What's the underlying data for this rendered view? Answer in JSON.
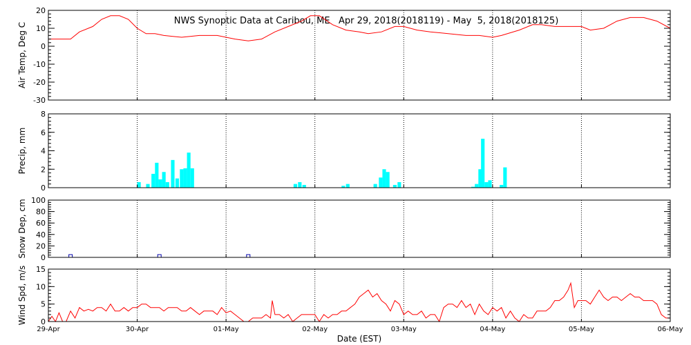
{
  "title": "NWS Synoptic Data at Caribou, ME   Apr 29, 2018(2018119) - May  5, 2018(2018125)",
  "x_axis": {
    "label": "Date (EST)",
    "ticks": [
      "29-Apr",
      "30-Apr",
      "01-May",
      "02-May",
      "03-May",
      "04-May",
      "05-May",
      "06-May"
    ]
  },
  "colors": {
    "air_temp": "#ff0000",
    "precip": "#00ffff",
    "snow_depth": "#0000aa",
    "wind_speed": "#ff0000"
  },
  "chart_data": [
    {
      "type": "line",
      "ylabel": "Air Temp, Deg C",
      "ylim": [
        -30,
        20
      ],
      "yticks": [
        -30,
        -20,
        -10,
        0,
        10,
        20
      ],
      "x_unit": "days since 29-Apr 00:00 EST",
      "series": [
        {
          "points": [
            [
              0,
              4
            ],
            [
              0.25,
              4
            ],
            [
              0.35,
              8
            ],
            [
              0.5,
              11
            ],
            [
              0.6,
              15
            ],
            [
              0.7,
              17
            ],
            [
              0.8,
              17
            ],
            [
              0.9,
              15
            ],
            [
              1.0,
              10
            ],
            [
              1.1,
              7
            ],
            [
              1.2,
              7
            ],
            [
              1.3,
              6
            ],
            [
              1.5,
              5
            ],
            [
              1.7,
              6
            ],
            [
              1.9,
              6
            ],
            [
              2.0,
              5
            ],
            [
              2.1,
              4
            ],
            [
              2.25,
              3
            ],
            [
              2.4,
              4
            ],
            [
              2.55,
              8
            ],
            [
              2.7,
              11
            ],
            [
              2.85,
              14
            ],
            [
              2.95,
              17
            ],
            [
              3.05,
              17
            ],
            [
              3.2,
              12
            ],
            [
              3.35,
              9
            ],
            [
              3.5,
              8
            ],
            [
              3.6,
              7
            ],
            [
              3.75,
              8
            ],
            [
              3.9,
              11
            ],
            [
              4.0,
              11
            ],
            [
              4.15,
              9
            ],
            [
              4.3,
              8
            ],
            [
              4.5,
              7
            ],
            [
              4.7,
              6
            ],
            [
              4.85,
              6
            ],
            [
              5.0,
              5
            ],
            [
              5.1,
              6
            ],
            [
              5.3,
              9
            ],
            [
              5.45,
              12
            ],
            [
              5.55,
              12
            ],
            [
              5.7,
              11
            ],
            [
              5.85,
              11
            ],
            [
              6.0,
              11
            ],
            [
              6.1,
              9
            ],
            [
              6.25,
              10
            ],
            [
              6.4,
              14
            ],
            [
              6.55,
              16
            ],
            [
              6.7,
              16
            ],
            [
              6.85,
              14
            ],
            [
              7.0,
              10
            ]
          ]
        }
      ]
    },
    {
      "type": "bar",
      "ylabel": "Precip, mm",
      "ylim": [
        0,
        8
      ],
      "yticks": [
        0,
        2,
        4,
        6,
        8
      ],
      "x_unit": "days since 29-Apr 00:00 EST",
      "bar_width_days": 0.04,
      "bars": [
        [
          1.02,
          0.6
        ],
        [
          1.12,
          0.4
        ],
        [
          1.18,
          1.5
        ],
        [
          1.22,
          2.7
        ],
        [
          1.26,
          0.9
        ],
        [
          1.3,
          1.7
        ],
        [
          1.34,
          0.6
        ],
        [
          1.4,
          3.0
        ],
        [
          1.45,
          1.0
        ],
        [
          1.5,
          2.0
        ],
        [
          1.54,
          2.1
        ],
        [
          1.58,
          3.8
        ],
        [
          1.62,
          2.1
        ],
        [
          2.78,
          0.4
        ],
        [
          2.83,
          0.6
        ],
        [
          2.88,
          0.3
        ],
        [
          3.32,
          0.2
        ],
        [
          3.37,
          0.4
        ],
        [
          3.68,
          0.4
        ],
        [
          3.74,
          1.1
        ],
        [
          3.78,
          2.0
        ],
        [
          3.82,
          1.7
        ],
        [
          3.9,
          0.3
        ],
        [
          3.95,
          0.6
        ],
        [
          4.78,
          0.1
        ],
        [
          4.82,
          0.4
        ],
        [
          4.86,
          2.0
        ],
        [
          4.89,
          5.3
        ],
        [
          4.93,
          0.6
        ],
        [
          4.97,
          0.8
        ],
        [
          5.1,
          0.3
        ],
        [
          5.14,
          2.2
        ]
      ]
    },
    {
      "type": "scatter",
      "ylabel": "Snow Dep, cm",
      "ylim": [
        0,
        100
      ],
      "yticks": [
        0,
        20,
        40,
        60,
        80,
        100
      ],
      "x_unit": "days since 29-Apr 00:00 EST",
      "points": [
        [
          0.25,
          0
        ],
        [
          1.25,
          0
        ],
        [
          2.25,
          0
        ]
      ]
    },
    {
      "type": "line",
      "ylabel": "Wind Spd, m/s",
      "ylim": [
        0,
        15
      ],
      "yticks": [
        0,
        5,
        10,
        15
      ],
      "x_unit": "days since 29-Apr 00:00 EST",
      "series": [
        {
          "points": [
            [
              0,
              0
            ],
            [
              0.04,
              1.5
            ],
            [
              0.08,
              0
            ],
            [
              0.12,
              2.5
            ],
            [
              0.16,
              0
            ],
            [
              0.2,
              0
            ],
            [
              0.25,
              3
            ],
            [
              0.3,
              1
            ],
            [
              0.35,
              4
            ],
            [
              0.4,
              3
            ],
            [
              0.45,
              3.5
            ],
            [
              0.5,
              3
            ],
            [
              0.55,
              4
            ],
            [
              0.6,
              4
            ],
            [
              0.65,
              3
            ],
            [
              0.7,
              5
            ],
            [
              0.75,
              3
            ],
            [
              0.8,
              3
            ],
            [
              0.85,
              4
            ],
            [
              0.9,
              3
            ],
            [
              0.95,
              4
            ],
            [
              1.0,
              4
            ],
            [
              1.05,
              5
            ],
            [
              1.1,
              5
            ],
            [
              1.15,
              4
            ],
            [
              1.2,
              4
            ],
            [
              1.25,
              4
            ],
            [
              1.3,
              3
            ],
            [
              1.35,
              4
            ],
            [
              1.4,
              4
            ],
            [
              1.45,
              4
            ],
            [
              1.5,
              3
            ],
            [
              1.55,
              3
            ],
            [
              1.6,
              4
            ],
            [
              1.65,
              3
            ],
            [
              1.7,
              2
            ],
            [
              1.75,
              3
            ],
            [
              1.8,
              3
            ],
            [
              1.85,
              3
            ],
            [
              1.9,
              2
            ],
            [
              1.95,
              4
            ],
            [
              2.0,
              2.5
            ],
            [
              2.05,
              3
            ],
            [
              2.1,
              2
            ],
            [
              2.15,
              1
            ],
            [
              2.2,
              0
            ],
            [
              2.25,
              0
            ],
            [
              2.3,
              1
            ],
            [
              2.35,
              1
            ],
            [
              2.4,
              1
            ],
            [
              2.45,
              2
            ],
            [
              2.5,
              1
            ],
            [
              2.52,
              6
            ],
            [
              2.55,
              2
            ],
            [
              2.6,
              2
            ],
            [
              2.65,
              1
            ],
            [
              2.7,
              2
            ],
            [
              2.75,
              0
            ],
            [
              2.8,
              1
            ],
            [
              2.85,
              2
            ],
            [
              2.9,
              2
            ],
            [
              2.95,
              2
            ],
            [
              3.0,
              2
            ],
            [
              3.05,
              0
            ],
            [
              3.1,
              2
            ],
            [
              3.15,
              1
            ],
            [
              3.2,
              2
            ],
            [
              3.25,
              2
            ],
            [
              3.3,
              3
            ],
            [
              3.35,
              3
            ],
            [
              3.4,
              4
            ],
            [
              3.45,
              5
            ],
            [
              3.5,
              7
            ],
            [
              3.55,
              8
            ],
            [
              3.6,
              9
            ],
            [
              3.65,
              7
            ],
            [
              3.7,
              8
            ],
            [
              3.75,
              6
            ],
            [
              3.8,
              5
            ],
            [
              3.85,
              3
            ],
            [
              3.9,
              6
            ],
            [
              3.95,
              5
            ],
            [
              4.0,
              2
            ],
            [
              4.05,
              3
            ],
            [
              4.1,
              2
            ],
            [
              4.15,
              2
            ],
            [
              4.2,
              3
            ],
            [
              4.25,
              1
            ],
            [
              4.3,
              2
            ],
            [
              4.35,
              2
            ],
            [
              4.4,
              0
            ],
            [
              4.45,
              4
            ],
            [
              4.5,
              5
            ],
            [
              4.55,
              5
            ],
            [
              4.6,
              4
            ],
            [
              4.65,
              6
            ],
            [
              4.7,
              4
            ],
            [
              4.75,
              5
            ],
            [
              4.8,
              2
            ],
            [
              4.85,
              5
            ],
            [
              4.9,
              3
            ],
            [
              4.95,
              2
            ],
            [
              5.0,
              4
            ],
            [
              5.05,
              3
            ],
            [
              5.1,
              4
            ],
            [
              5.15,
              1
            ],
            [
              5.2,
              3
            ],
            [
              5.25,
              1
            ],
            [
              5.3,
              0
            ],
            [
              5.35,
              2
            ],
            [
              5.4,
              1
            ],
            [
              5.45,
              1
            ],
            [
              5.5,
              3
            ],
            [
              5.55,
              3
            ],
            [
              5.6,
              3
            ],
            [
              5.65,
              4
            ],
            [
              5.7,
              6
            ],
            [
              5.75,
              6
            ],
            [
              5.8,
              7
            ],
            [
              5.85,
              9
            ],
            [
              5.88,
              11
            ],
            [
              5.92,
              4
            ],
            [
              5.96,
              6
            ],
            [
              6.0,
              6
            ],
            [
              6.05,
              6
            ],
            [
              6.1,
              5
            ],
            [
              6.15,
              7
            ],
            [
              6.2,
              9
            ],
            [
              6.25,
              7
            ],
            [
              6.3,
              6
            ],
            [
              6.35,
              7
            ],
            [
              6.4,
              7
            ],
            [
              6.45,
              6
            ],
            [
              6.5,
              7
            ],
            [
              6.55,
              8
            ],
            [
              6.6,
              7
            ],
            [
              6.65,
              7
            ],
            [
              6.7,
              6
            ],
            [
              6.75,
              6
            ],
            [
              6.8,
              6
            ],
            [
              6.85,
              5
            ],
            [
              6.9,
              2
            ],
            [
              6.95,
              1
            ],
            [
              7.0,
              1
            ]
          ]
        }
      ]
    }
  ]
}
